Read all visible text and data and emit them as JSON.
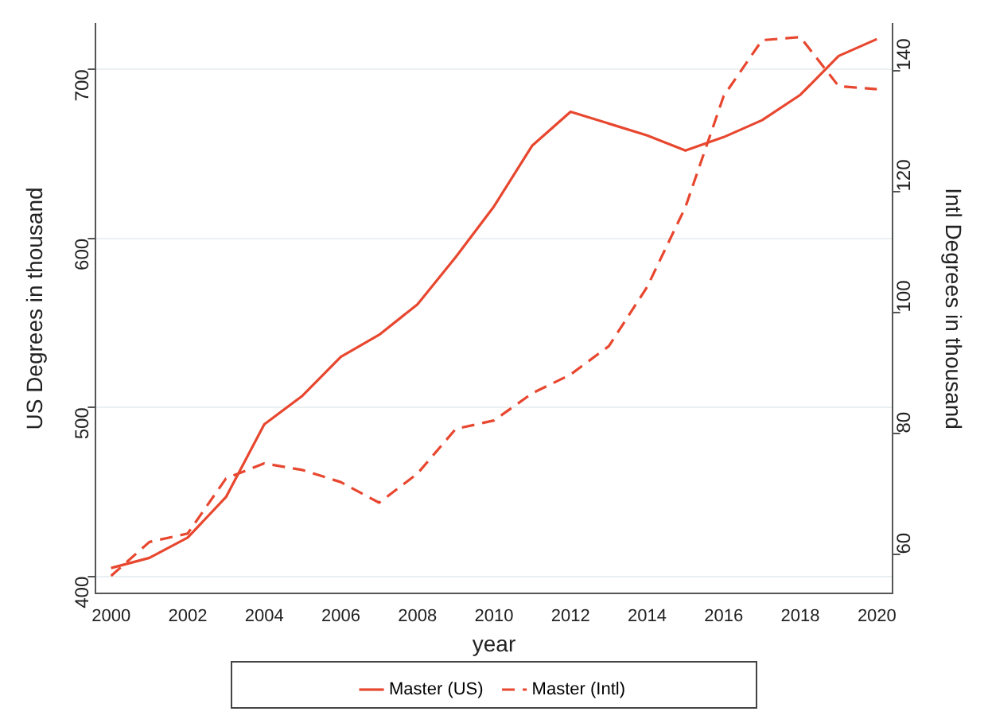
{
  "chart_data": {
    "type": "line",
    "xlabel": "year",
    "ylabel": "US Degrees in thousand",
    "y2label": "Intl Degrees in thousand",
    "x": [
      2000,
      2001,
      2002,
      2003,
      2004,
      2005,
      2006,
      2007,
      2008,
      2009,
      2010,
      2011,
      2012,
      2013,
      2014,
      2015,
      2016,
      2017,
      2018,
      2019,
      2020
    ],
    "series": [
      {
        "name": "Master (US)",
        "color": "#e8472f",
        "line_style": "solid",
        "values": [
          405,
          411,
          423,
          447,
          490,
          507,
          530,
          543,
          561,
          589,
          619,
          655,
          675,
          668,
          661,
          652,
          660,
          670,
          685,
          708,
          718
        ]
      },
      {
        "name": "Master (Intl)",
        "color": "#e8472f",
        "line_style": "dashed",
        "axis": "y2",
        "values": [
          56.4,
          62.0,
          63.4,
          72.5,
          75.0,
          73.9,
          71.9,
          68.5,
          73.3,
          80.7,
          82.1,
          86.6,
          89.7,
          94.4,
          104.2,
          117.4,
          135.8,
          145,
          145.5,
          137.4,
          136.9
        ]
      }
    ],
    "xlim": [
      1999.6,
      2020.4
    ],
    "xticks": [
      2000,
      2002,
      2004,
      2006,
      2008,
      2010,
      2012,
      2014,
      2016,
      2018,
      2020
    ],
    "ylim": [
      390,
      727
    ],
    "yticks": [
      400,
      500,
      600,
      700
    ],
    "y2lim": [
      53.5,
      147.7
    ],
    "y2ticks": [
      60,
      80,
      100,
      120,
      140
    ],
    "grid": "y",
    "legend": "bottom",
    "marker": "none"
  }
}
